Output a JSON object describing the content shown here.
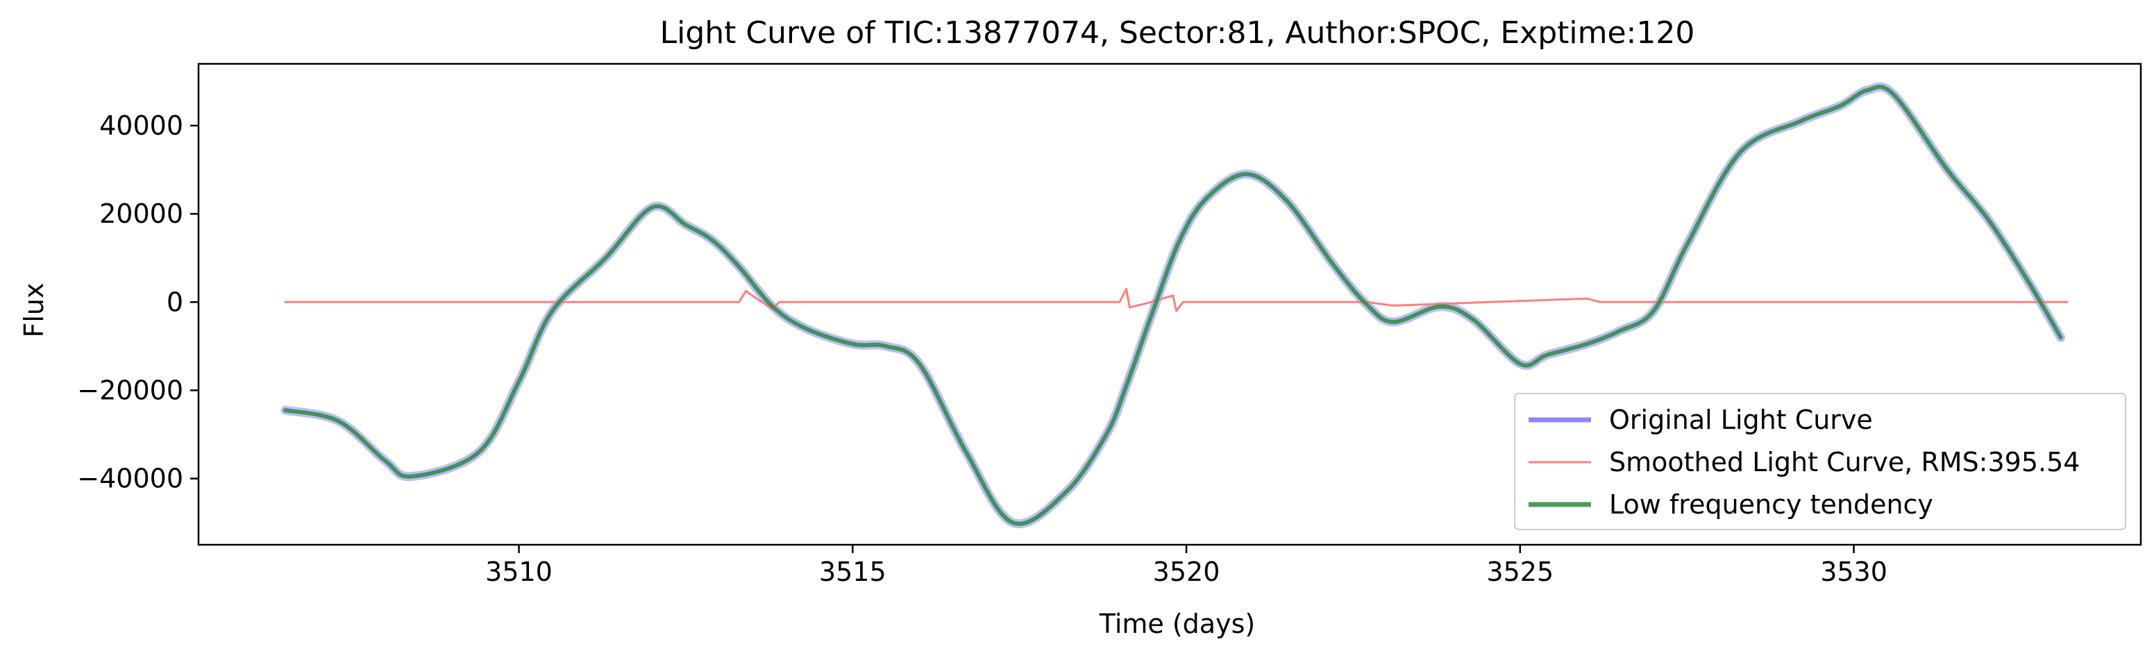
{
  "chart_data": {
    "type": "line",
    "title": "Light Curve of TIC:13877074, Sector:81, Author:SPOC, Exptime:120",
    "xlabel": "Time (days)",
    "ylabel": "Flux",
    "xlim": [
      3505.2,
      3534.3
    ],
    "ylim": [
      -55000,
      54000
    ],
    "xticks": [
      3510,
      3515,
      3520,
      3525,
      3530
    ],
    "xtick_labels": [
      "3510",
      "3515",
      "3520",
      "3525",
      "3530"
    ],
    "yticks": [
      -40000,
      -20000,
      0,
      20000,
      40000
    ],
    "ytick_labels": [
      "−40000",
      "−20000",
      "0",
      "20000",
      "40000"
    ],
    "grid": false,
    "legend": {
      "placement": "lower right"
    },
    "series": [
      {
        "name": "Original Light Curve",
        "color": "#7b7bf5",
        "style": "thick line, alpha 0.5",
        "x": [
          3506.5,
          3507.3,
          3508.0,
          3508.4,
          3509.4,
          3510.0,
          3510.5,
          3511.3,
          3512.0,
          3512.5,
          3512.9,
          3513.3,
          3513.8,
          3514.3,
          3515.0,
          3515.5,
          3516.0,
          3516.7,
          3517.4,
          3518.2,
          3518.8,
          3519.1,
          3519.5,
          3519.9,
          3520.3,
          3520.9,
          3521.5,
          3522.2,
          3522.7,
          3523.1,
          3523.8,
          3524.3,
          3525.0,
          3525.4,
          3526.0,
          3526.5,
          3527.0,
          3527.5,
          3528.3,
          3529.2,
          3529.8,
          3530.2,
          3530.6,
          3531.4,
          3532.0,
          3532.6,
          3533.1
        ],
        "y": [
          -24500,
          -27000,
          -36000,
          -39500,
          -34000,
          -18000,
          -2000,
          10000,
          21500,
          17500,
          14000,
          8000,
          -1000,
          -6000,
          -9500,
          -10000,
          -14000,
          -34000,
          -50000,
          -43000,
          -30000,
          -19000,
          -2000,
          14000,
          23500,
          29000,
          23000,
          8500,
          -500,
          -4500,
          -1000,
          -4000,
          -14000,
          -12000,
          -9500,
          -6500,
          -2000,
          13000,
          34000,
          41000,
          44500,
          48000,
          47000,
          30000,
          19000,
          5000,
          -8000
        ]
      },
      {
        "name": "Smoothed Light Curve, RMS:395.54",
        "color": "#ff7f7f",
        "style": "thin line",
        "x": [
          3506.5,
          3513.3,
          3513.4,
          3513.6,
          3513.8,
          3513.9,
          3519.0,
          3519.1,
          3519.15,
          3519.4,
          3519.8,
          3519.85,
          3519.95,
          3522.7,
          3523.1,
          3526.0,
          3526.2,
          3533.2
        ],
        "y": [
          0,
          0,
          2500,
          400,
          -1500,
          0,
          0,
          3000,
          -1200,
          -300,
          1500,
          -2000,
          0,
          0,
          -800,
          800,
          0,
          0
        ]
      },
      {
        "name": "Low frequency tendency",
        "color": "#2e8b3e",
        "style": "thick line",
        "x": [
          3506.5,
          3507.3,
          3508.0,
          3508.4,
          3509.4,
          3510.0,
          3510.5,
          3511.3,
          3512.0,
          3512.5,
          3512.9,
          3513.3,
          3513.8,
          3514.3,
          3515.0,
          3515.5,
          3516.0,
          3516.7,
          3517.4,
          3518.2,
          3518.8,
          3519.1,
          3519.5,
          3519.9,
          3520.3,
          3520.9,
          3521.5,
          3522.2,
          3522.7,
          3523.1,
          3523.8,
          3524.3,
          3525.0,
          3525.4,
          3526.0,
          3526.5,
          3527.0,
          3527.5,
          3528.3,
          3529.2,
          3529.8,
          3530.2,
          3530.6,
          3531.4,
          3532.0,
          3532.6,
          3533.1
        ],
        "y": [
          -24500,
          -27000,
          -36000,
          -39500,
          -34000,
          -18000,
          -2000,
          10000,
          21500,
          17500,
          14000,
          8000,
          -1000,
          -6000,
          -9500,
          -10000,
          -14000,
          -34000,
          -50000,
          -43000,
          -30000,
          -19000,
          -2000,
          14000,
          23500,
          29000,
          23000,
          8500,
          -500,
          -4500,
          -1000,
          -4000,
          -14000,
          -12000,
          -9500,
          -6500,
          -2000,
          13000,
          34000,
          41000,
          44500,
          48000,
          47000,
          30000,
          19000,
          5000,
          -8000
        ]
      }
    ]
  }
}
